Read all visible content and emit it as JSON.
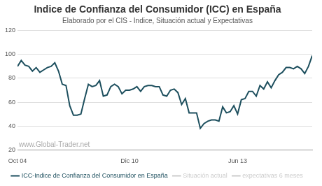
{
  "chart_data": {
    "type": "line",
    "title": "Indice de Confianza del Consumidor (ICC) en España",
    "subtitle": "Elaborado por el CIS - Indice, Situación actual y Expectativas",
    "watermark": "www.Global-Trader.net",
    "categories": [
      "Oct 04",
      null,
      null,
      null,
      null,
      null,
      null,
      null,
      null,
      null,
      null,
      null,
      null,
      null,
      null,
      null,
      null,
      null,
      null,
      null,
      null,
      null,
      null,
      null,
      null,
      null,
      null,
      null,
      null,
      null,
      "Dic 10",
      null,
      null,
      null,
      null,
      null,
      null,
      null,
      null,
      null,
      null,
      null,
      null,
      null,
      null,
      null,
      null,
      null,
      null,
      null,
      null,
      null,
      null,
      null,
      null,
      null,
      null,
      null,
      null,
      "Jun 13",
      null,
      null,
      null,
      null,
      null,
      null,
      null,
      null,
      null,
      null,
      null,
      null,
      null,
      null,
      null,
      null,
      null,
      null,
      null,
      null
    ],
    "series": [
      {
        "name": "ICC-Indice de Confianza del Consumidor en España",
        "color": "#1d4f5e",
        "marker": "none",
        "line_style": "solid",
        "values": [
          90,
          95,
          91,
          90,
          86,
          89,
          85,
          87,
          89,
          90,
          93,
          86,
          75,
          74,
          57,
          49,
          49,
          50,
          63,
          75,
          73,
          74,
          78,
          65,
          66,
          73,
          75,
          73,
          67,
          70,
          70,
          71,
          73,
          69,
          73,
          74,
          74,
          73,
          73,
          66,
          65,
          70,
          71,
          68,
          58,
          63,
          51,
          51,
          51,
          38,
          42,
          44,
          45,
          45,
          44,
          56,
          51,
          52,
          57,
          50,
          62,
          63,
          69,
          69,
          65,
          74,
          71,
          77,
          72,
          78,
          83,
          85,
          89,
          89,
          88,
          90,
          88,
          84,
          90,
          99
        ]
      },
      {
        "name": "Situación actual",
        "color": "#cccccc",
        "marker": "none",
        "line_style": "solid",
        "values": [
          null,
          null,
          null,
          null,
          null,
          null,
          null,
          null,
          null,
          null,
          null,
          null,
          null,
          null,
          null,
          null,
          null,
          null,
          null,
          null,
          null,
          null,
          null,
          null,
          null,
          null,
          null,
          null,
          null,
          null,
          null,
          null,
          null,
          null,
          null,
          null,
          null,
          null,
          null,
          null,
          null,
          null,
          null,
          null,
          null,
          null,
          null,
          null,
          null,
          null,
          null,
          null,
          null,
          null,
          null,
          null,
          null,
          null,
          null,
          null,
          null,
          null,
          null,
          null,
          null,
          null,
          null,
          null,
          null,
          null,
          null,
          null,
          null,
          null,
          null,
          null,
          null,
          null,
          null,
          null
        ]
      },
      {
        "name": "expectativas 6 meses",
        "color": "#cccccc",
        "marker": "none",
        "line_style": "solid",
        "values": [
          null,
          null,
          null,
          null,
          null,
          null,
          null,
          null,
          null,
          null,
          null,
          null,
          null,
          null,
          null,
          null,
          null,
          null,
          null,
          null,
          null,
          null,
          null,
          null,
          null,
          null,
          null,
          null,
          null,
          null,
          null,
          null,
          null,
          null,
          null,
          null,
          null,
          null,
          null,
          null,
          null,
          null,
          null,
          null,
          null,
          null,
          null,
          null,
          null,
          null,
          null,
          null,
          null,
          null,
          null,
          null,
          null,
          null,
          null,
          null,
          null,
          null,
          null,
          null,
          null,
          null,
          null,
          null,
          null,
          null,
          null,
          null,
          null,
          null,
          null,
          null,
          null,
          null,
          null,
          null
        ]
      }
    ],
    "ylim": [
      20,
      120
    ],
    "yticks": [
      20,
      40,
      60,
      80,
      100,
      120
    ],
    "grid": true,
    "legend": "bottom"
  }
}
